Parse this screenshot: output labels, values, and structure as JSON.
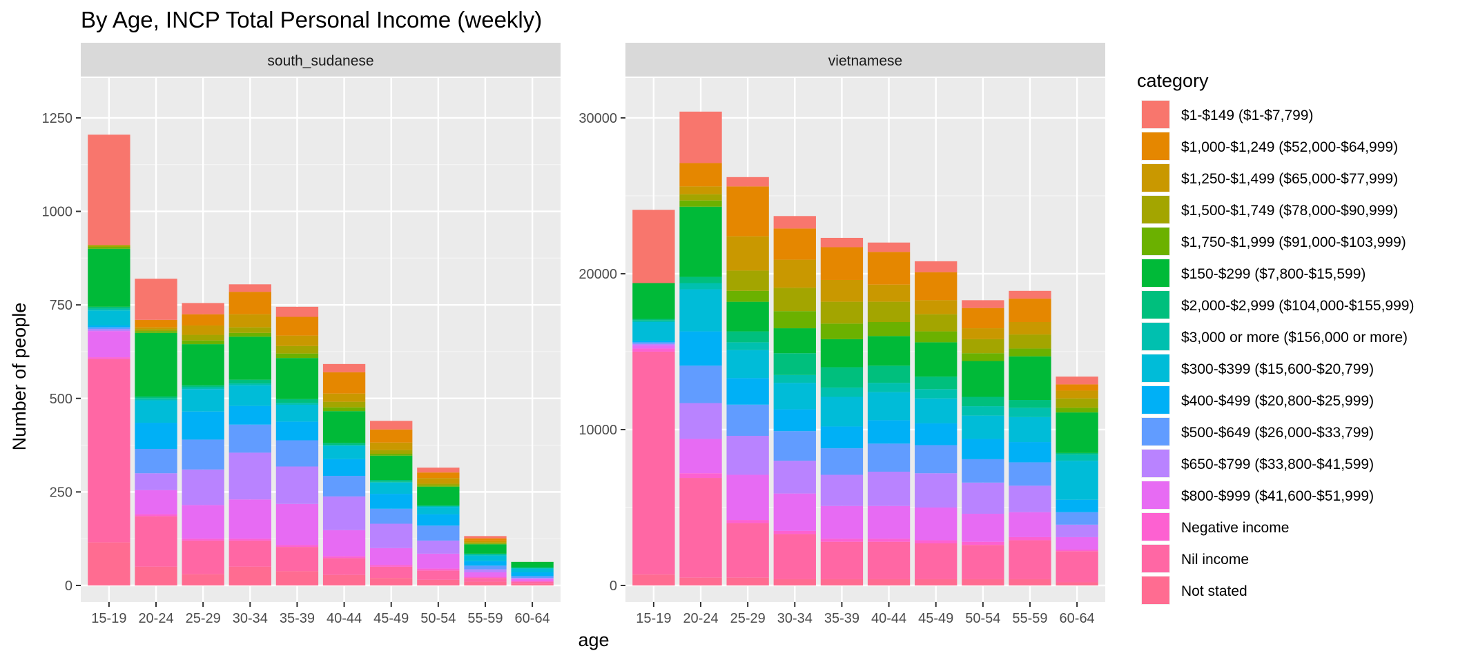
{
  "chart_data": {
    "type": "bar",
    "stacked": true,
    "title": "By Age,  INCP Total Personal Income (weekly)",
    "xlabel": "age",
    "ylabel": "Number of people",
    "grid": true,
    "legend_position": "right",
    "legend_title": "category",
    "categories": [
      "15-19",
      "20-24",
      "25-29",
      "30-34",
      "35-39",
      "40-44",
      "45-49",
      "50-54",
      "55-59",
      "60-64"
    ],
    "legend": [
      {
        "name": "$1-$149 ($1-$7,799)",
        "color": "#F8766D"
      },
      {
        "name": "$1,000-$1,249 ($52,000-$64,999)",
        "color": "#E58700"
      },
      {
        "name": "$1,250-$1,499 ($65,000-$77,999)",
        "color": "#C99800"
      },
      {
        "name": "$1,500-$1,749 ($78,000-$90,999)",
        "color": "#A3A500"
      },
      {
        "name": "$1,750-$1,999 ($91,000-$103,999)",
        "color": "#6BB100"
      },
      {
        "name": "$150-$299 ($7,800-$15,599)",
        "color": "#00BA38"
      },
      {
        "name": "$2,000-$2,999 ($104,000-$155,999)",
        "color": "#00BF7D"
      },
      {
        "name": "$3,000 or more ($156,000 or more)",
        "color": "#00C0AF"
      },
      {
        "name": "$300-$399 ($15,600-$20,799)",
        "color": "#00BCD8"
      },
      {
        "name": "$400-$499 ($20,800-$25,999)",
        "color": "#00B0F6"
      },
      {
        "name": "$500-$649 ($26,000-$33,799)",
        "color": "#619CFF"
      },
      {
        "name": "$650-$799 ($33,800-$41,599)",
        "color": "#B983FF"
      },
      {
        "name": "$800-$999 ($41,600-$51,999)",
        "color": "#E76BF3"
      },
      {
        "name": "Negative income",
        "color": "#FD61D1"
      },
      {
        "name": "Nil income",
        "color": "#FF67A4"
      },
      {
        "name": "Not stated",
        "color": "#FF6C91"
      }
    ],
    "panels": [
      {
        "name": "south_sudanese",
        "ylim": [
          0,
          1250
        ],
        "yticks": [
          0,
          250,
          500,
          750,
          1000,
          1250
        ],
        "series": [
          {
            "name": "Not stated",
            "values": [
              115,
              50,
              30,
              50,
              38,
              28,
              20,
              15,
              10,
              5
            ]
          },
          {
            "name": "Nil income",
            "values": [
              490,
              135,
              90,
              70,
              65,
              45,
              30,
              25,
              10,
              5
            ]
          },
          {
            "name": "Negative income",
            "values": [
              5,
              5,
              5,
              5,
              5,
              5,
              5,
              5,
              3,
              2
            ]
          },
          {
            "name": "$800-$999 ($41,600-$51,999)",
            "values": [
              70,
              65,
              90,
              105,
              110,
              70,
              45,
              40,
              12,
              5
            ]
          },
          {
            "name": "$650-$799 ($33,800-$41,599)",
            "values": [
              5,
              45,
              95,
              125,
              100,
              90,
              65,
              35,
              8,
              3
            ]
          },
          {
            "name": "$500-$649 ($26,000-$33,799)",
            "values": [
              5,
              65,
              80,
              75,
              70,
              55,
              40,
              40,
              10,
              5
            ]
          },
          {
            "name": "$400-$499 ($20,800-$25,999)",
            "values": [
              5,
              70,
              75,
              50,
              50,
              45,
              40,
              30,
              12,
              10
            ]
          },
          {
            "name": "$300-$399 ($15,600-$20,799)",
            "values": [
              40,
              60,
              60,
              55,
              45,
              35,
              30,
              20,
              15,
              10
            ]
          },
          {
            "name": "$3,000 or more ($156,000 or more)",
            "values": [
              5,
              5,
              5,
              5,
              5,
              3,
              2,
              2,
              3,
              2
            ]
          },
          {
            "name": "$2,000-$2,999 ($104,000-$155,999)",
            "values": [
              5,
              5,
              5,
              10,
              10,
              5,
              5,
              2,
              2,
              1
            ]
          },
          {
            "name": "$150-$299 ($7,800-$15,599)",
            "values": [
              155,
              170,
              110,
              115,
              110,
              85,
              65,
              50,
              25,
              15
            ]
          },
          {
            "name": "$1,750-$1,999 ($91,000-$103,999)",
            "values": [
              5,
              5,
              10,
              10,
              12,
              10,
              5,
              3,
              2,
              0
            ]
          },
          {
            "name": "$1,500-$1,749 ($78,000-$90,999)",
            "values": [
              5,
              5,
              15,
              15,
              20,
              15,
              10,
              5,
              3,
              0
            ]
          },
          {
            "name": "$1,250-$1,499 ($65,000-$77,999)",
            "values": [
              0,
              5,
              25,
              35,
              28,
              22,
              20,
              15,
              5,
              0
            ]
          },
          {
            "name": "$1,000-$1,249 ($52,000-$64,999)",
            "values": [
              0,
              20,
              30,
              60,
              50,
              57,
              35,
              15,
              6,
              0
            ]
          },
          {
            "name": "$1-$149 ($1-$7,799)",
            "values": [
              295,
              110,
              30,
              20,
              27,
              22,
              23,
              13,
              6,
              0
            ]
          }
        ]
      },
      {
        "name": "vietnamese",
        "ylim": [
          0,
          30000
        ],
        "yticks": [
          0,
          10000,
          20000,
          30000
        ],
        "series": [
          {
            "name": "Not stated",
            "values": [
              700,
              500,
              500,
              400,
              400,
              400,
              400,
              400,
              400,
              200
            ]
          },
          {
            "name": "Nil income",
            "values": [
              14300,
              6400,
              3500,
              2900,
              2400,
              2400,
              2300,
              2200,
              2500,
              2000
            ]
          },
          {
            "name": "Negative income",
            "values": [
              200,
              300,
              200,
              200,
              200,
              200,
              200,
              200,
              200,
              100
            ]
          },
          {
            "name": "$800-$999 ($41,600-$51,999)",
            "values": [
              200,
              2200,
              2900,
              2400,
              2100,
              2100,
              2100,
              1800,
              1600,
              800
            ]
          },
          {
            "name": "$650-$799 ($33,800-$41,599)",
            "values": [
              100,
              2300,
              2500,
              2100,
              2000,
              2200,
              2200,
              2000,
              1700,
              800
            ]
          },
          {
            "name": "$500-$649 ($26,000-$33,799)",
            "values": [
              100,
              2400,
              2000,
              1900,
              1700,
              1800,
              1800,
              1500,
              1500,
              800
            ]
          },
          {
            "name": "$400-$499 ($20,800-$25,999)",
            "values": [
              100,
              2200,
              1700,
              1400,
              1400,
              1500,
              1400,
              1300,
              1300,
              800
            ]
          },
          {
            "name": "$300-$399 ($15,600-$20,799)",
            "values": [
              1200,
              2700,
              1800,
              1700,
              1900,
              1800,
              1600,
              1500,
              1600,
              2500
            ]
          },
          {
            "name": "$3,000 or more ($156,000 or more)",
            "values": [
              100,
              400,
              500,
              500,
              600,
              600,
              600,
              600,
              600,
              400
            ]
          },
          {
            "name": "$2,000-$2,999 ($104,000-$155,999)",
            "values": [
              100,
              400,
              700,
              1400,
              1300,
              1100,
              800,
              600,
              500,
              100
            ]
          },
          {
            "name": "$150-$299 ($7,800-$15,599)",
            "values": [
              2300,
              4500,
              1900,
              1600,
              1800,
              1900,
              2200,
              2300,
              2800,
              2600
            ]
          },
          {
            "name": "$1,750-$1,999 ($91,000-$103,999)",
            "values": [
              0,
              400,
              700,
              1100,
              1000,
              900,
              700,
              500,
              500,
              300
            ]
          },
          {
            "name": "$1,500-$1,749 ($78,000-$90,999)",
            "values": [
              0,
              400,
              1300,
              1500,
              1400,
              1300,
              1100,
              900,
              900,
              600
            ]
          },
          {
            "name": "$1,250-$1,499 ($65,000-$77,999)",
            "values": [
              0,
              500,
              2200,
              1800,
              1400,
              1100,
              900,
              700,
              800,
              500
            ]
          },
          {
            "name": "$1,000-$1,249 ($52,000-$64,999)",
            "values": [
              0,
              1500,
              3200,
              2000,
              2100,
              2100,
              1800,
              1300,
              1500,
              400
            ]
          },
          {
            "name": "$1-$149 ($1-$7,799)",
            "values": [
              4700,
              3300,
              600,
              800,
              600,
              600,
              700,
              500,
              500,
              500
            ]
          }
        ]
      }
    ]
  }
}
